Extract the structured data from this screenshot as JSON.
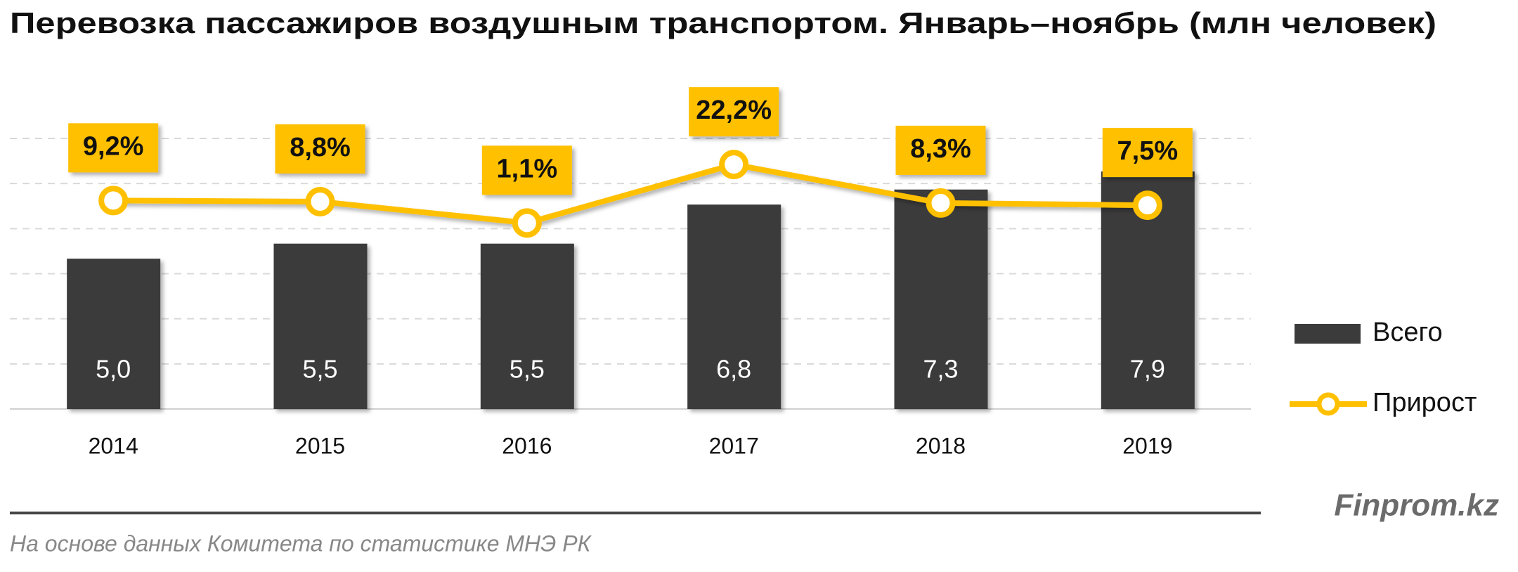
{
  "chart_data": {
    "type": "bar_line",
    "title": "Перевозка пассажиров воздушным транспортом. Январь–ноябрь (млн человек)",
    "categories": [
      "2014",
      "2015",
      "2016",
      "2017",
      "2018",
      "2019"
    ],
    "series": [
      {
        "name": "Всего",
        "type": "bar",
        "color": "#3b3b3b",
        "values": [
          5.0,
          5.5,
          5.5,
          6.8,
          7.3,
          7.9
        ],
        "value_labels": [
          "5,0",
          "5,5",
          "5,5",
          "6,8",
          "7,3",
          "7,9"
        ]
      },
      {
        "name": "Прирост",
        "type": "line",
        "axis": "y2",
        "color": "#ffc000",
        "values": [
          9.2,
          8.8,
          1.1,
          22.2,
          8.3,
          7.5
        ],
        "value_labels": [
          "9,2%",
          "8,8%",
          "1,1%",
          "22,2%",
          "8,3%",
          "7,5%"
        ]
      }
    ],
    "ylim": [
      0,
      9
    ],
    "yticks": [
      0,
      1.5,
      3,
      4.5,
      6,
      7.5,
      9
    ],
    "ytick_labels": false,
    "y2lim": [
      -66,
      31.6
    ],
    "grid": true,
    "legend": "right",
    "brand": "Finprom.kz",
    "source": "На основе данных  Комитета по статистике МНЭ РК"
  }
}
